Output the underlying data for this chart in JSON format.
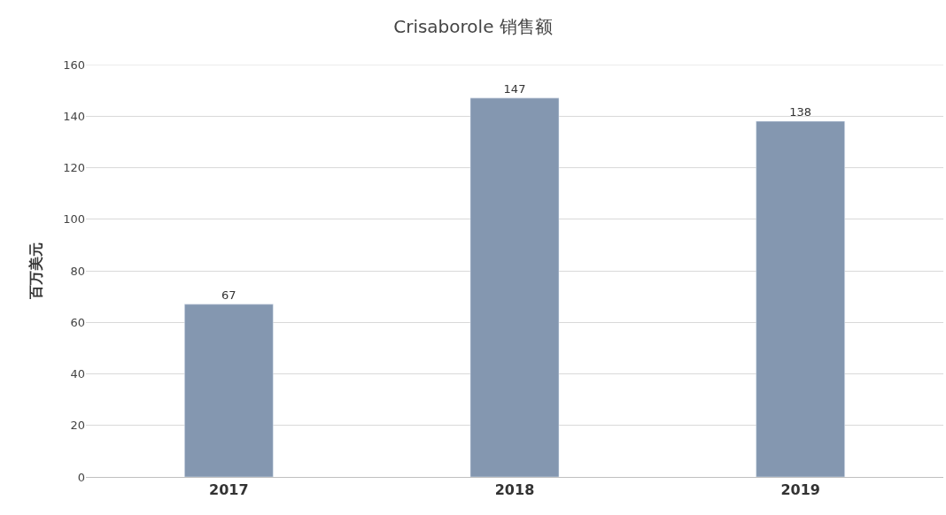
{
  "chart_data": {
    "type": "bar",
    "title": "Crisaborole 销售额",
    "ylabel": "百万美元",
    "categories": [
      "2017",
      "2018",
      "2019"
    ],
    "values": [
      67,
      147,
      138
    ],
    "color": "#8497b0",
    "ylim": [
      0,
      160
    ],
    "yticks": [
      0,
      20,
      40,
      60,
      80,
      100,
      120,
      140,
      160
    ],
    "grid": "y",
    "data_labels": true
  }
}
